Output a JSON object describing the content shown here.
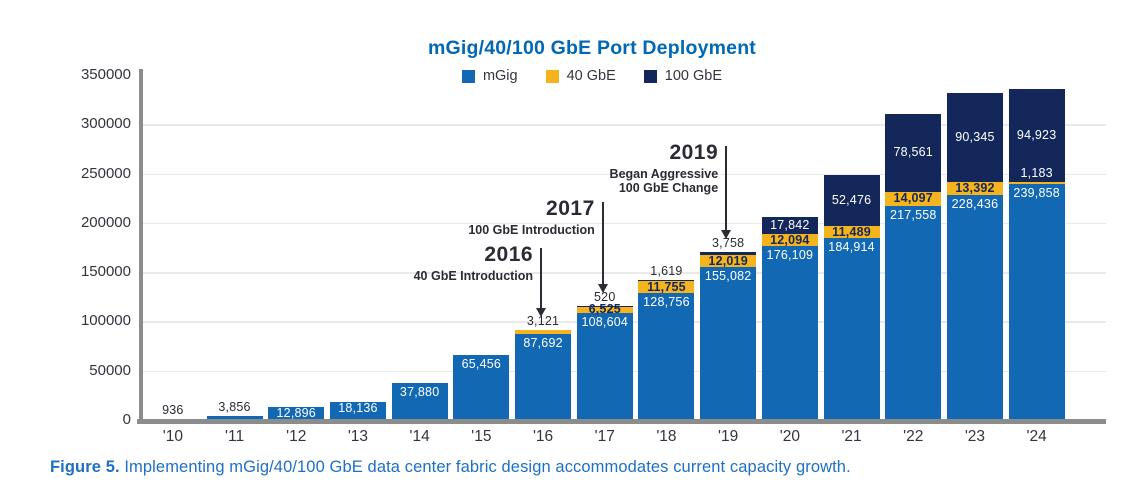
{
  "caption": {
    "prefix": "Figure 5.",
    "text": "Implementing mGig/40/100 GbE data center fabric design accommodates current capacity growth.",
    "color": "#1E70C6"
  },
  "chart_data": {
    "type": "bar",
    "stacked": true,
    "title": "mGig/40/100 GbE Port Deployment",
    "title_color": "#0068B5",
    "xlabel": "",
    "ylabel": "",
    "ylim": [
      0,
      350000
    ],
    "yticks": [
      0,
      50000,
      100000,
      150000,
      200000,
      250000,
      300000,
      350000
    ],
    "grid": true,
    "legend_position": "top-center",
    "categories": [
      "'10",
      "'11",
      "'12",
      "'13",
      "'14",
      "'15",
      "'16",
      "'17",
      "'18",
      "'19",
      "'20",
      "'21",
      "'22",
      "'23",
      "'24"
    ],
    "series": [
      {
        "name": "mGig",
        "key": "mgig",
        "color": "#1268B3",
        "values": [
          936,
          3856,
          12896,
          18136,
          37880,
          65456,
          87692,
          108604,
          128756,
          155082,
          176109,
          184914,
          217558,
          228436,
          239858
        ],
        "labels": [
          "above",
          "above",
          "in",
          "in",
          "in",
          "in",
          "in",
          "in",
          "in",
          "in",
          "in",
          "in",
          "in",
          "in",
          "in"
        ]
      },
      {
        "name": "40 GbE",
        "key": "40gbe",
        "color": "#F5B31E",
        "values": [
          0,
          0,
          0,
          0,
          0,
          0,
          3121,
          6525,
          11755,
          12019,
          12094,
          11489,
          14097,
          13392,
          1183
        ],
        "labels": [
          null,
          null,
          null,
          null,
          null,
          null,
          "above",
          "band",
          "band",
          "band",
          "band",
          "band",
          "band",
          "band",
          "navy-bottom"
        ]
      },
      {
        "name": "100 GbE",
        "key": "100gbe",
        "color": "#13275B",
        "values": [
          0,
          0,
          0,
          0,
          0,
          0,
          0,
          520,
          1619,
          3758,
          17842,
          52476,
          78561,
          90345,
          94923
        ],
        "labels": [
          null,
          null,
          null,
          null,
          null,
          null,
          null,
          "above",
          "above",
          "above",
          "in",
          "in",
          "in",
          "in",
          "in"
        ]
      }
    ],
    "annotations": [
      {
        "year": "2016",
        "lines": [
          "40 GbE Introduction"
        ],
        "target": 6,
        "arrow_top": 248
      },
      {
        "year": "2017",
        "lines": [
          "100 GbE Introduction"
        ],
        "target": 7,
        "arrow_top": 202
      },
      {
        "year": "2019",
        "lines": [
          "Began Aggressive",
          "100 GbE Change"
        ],
        "target": 9,
        "arrow_top": 146
      }
    ],
    "colors": {
      "grid": "#E9E9E9",
      "axis": "#8C8C8C",
      "tick_text": "#33343D",
      "label_dark": "#2A2B33",
      "label_light": "#FFFFFF",
      "label_on_band": "#13275B",
      "annotation": "#2A2B33"
    }
  }
}
